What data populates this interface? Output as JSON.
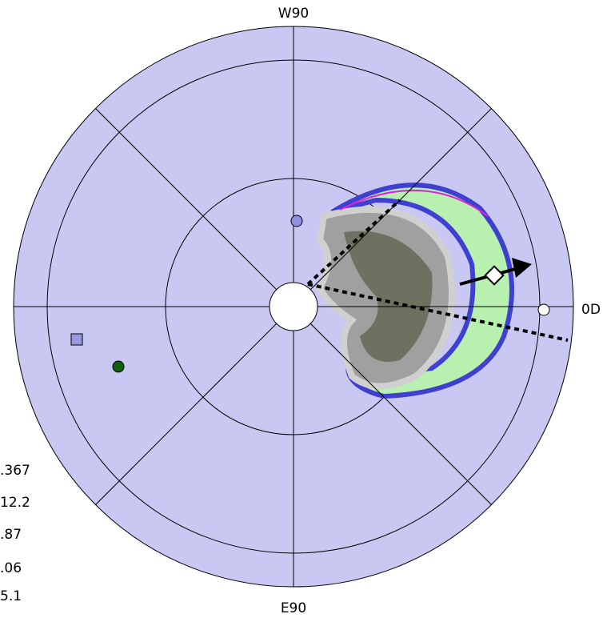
{
  "axis_labels": {
    "top": "W90",
    "bottom": "E90",
    "right": "0D"
  },
  "side_values": [
    ".367",
    "12.2",
    ".87",
    ".06",
    "5.1"
  ]
}
